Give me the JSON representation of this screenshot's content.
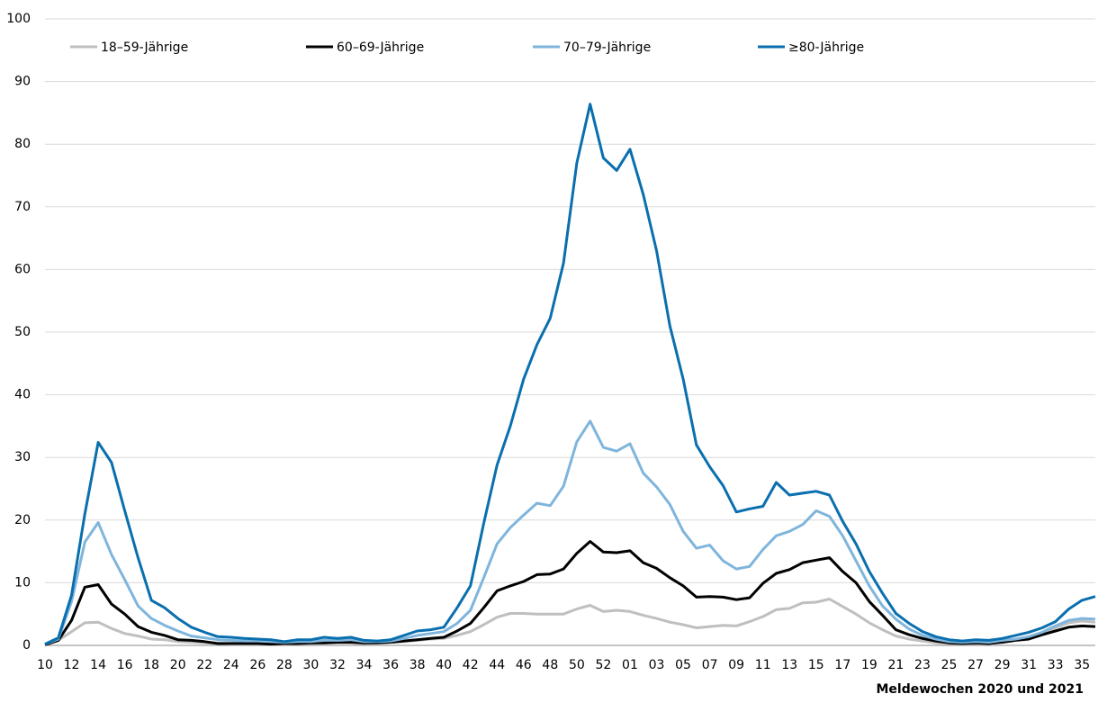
{
  "chart_data": {
    "type": "line",
    "x_label": "Meldewochen 2020 und 2021",
    "categories": [
      "10",
      null,
      "12",
      null,
      "14",
      null,
      "16",
      null,
      "18",
      null,
      "20",
      null,
      "22",
      null,
      "24",
      null,
      "26",
      null,
      "28",
      null,
      "30",
      null,
      "32",
      null,
      "34",
      null,
      "36",
      null,
      "38",
      null,
      "40",
      null,
      "42",
      null,
      "44",
      null,
      "46",
      null,
      "48",
      null,
      "50",
      null,
      "52",
      null,
      "01",
      null,
      "03",
      null,
      "05",
      null,
      "07",
      null,
      "09",
      null,
      "11",
      null,
      "13",
      null,
      "15",
      null,
      "17",
      null,
      "19",
      null,
      "21",
      null,
      "23",
      null,
      "25",
      null,
      "27",
      null,
      "29",
      null,
      "31",
      null,
      "33",
      null,
      "35",
      null
    ],
    "ylim": [
      0,
      100
    ],
    "yticks": [
      0,
      10,
      20,
      30,
      40,
      50,
      60,
      70,
      80,
      90,
      100
    ],
    "grid": true,
    "series": [
      {
        "name": "18–59-Jährige",
        "color": "#bfbfbf",
        "values": [
          0.1,
          0.8,
          2.2,
          3.6,
          3.7,
          2.7,
          1.9,
          1.5,
          1.0,
          0.9,
          0.6,
          0.5,
          0.4,
          0.3,
          0.2,
          0.2,
          0.2,
          0.2,
          0.2,
          0.3,
          0.3,
          0.4,
          0.4,
          0.4,
          0.3,
          0.4,
          0.5,
          0.6,
          0.8,
          1.0,
          1.1,
          1.6,
          2.2,
          3.3,
          4.5,
          5.1,
          5.1,
          5.0,
          5.0,
          5.0,
          5.8,
          6.4,
          5.4,
          5.6,
          5.4,
          4.8,
          4.3,
          3.7,
          3.3,
          2.8,
          3.0,
          3.2,
          3.1,
          3.8,
          4.6,
          5.7,
          5.9,
          6.8,
          6.9,
          7.4,
          6.2,
          5.0,
          3.6,
          2.5,
          1.5,
          1.0,
          0.7,
          0.4,
          0.3,
          0.2,
          0.3,
          0.3,
          0.6,
          0.9,
          1.4,
          2.0,
          2.8,
          3.6,
          3.9,
          3.7
        ]
      },
      {
        "name": "60–69-Jährige",
        "color": "#000000",
        "values": [
          0.1,
          0.8,
          4,
          9.3,
          9.7,
          6.6,
          5,
          3,
          2.1,
          1.6,
          0.9,
          0.8,
          0.6,
          0.3,
          0.3,
          0.3,
          0.3,
          0.2,
          0.3,
          0.3,
          0.4,
          0.4,
          0.5,
          0.5,
          0.4,
          0.4,
          0.5,
          0.7,
          0.9,
          1.1,
          1.3,
          2.3,
          3.5,
          6,
          8.7,
          9.5,
          10.2,
          11.3,
          11.4,
          12.2,
          14.7,
          16.6,
          14.9,
          14.8,
          15.1,
          13.2,
          12.3,
          10.8,
          9.5,
          7.7,
          7.8,
          7.7,
          7.3,
          7.6,
          9.9,
          11.5,
          12.1,
          13.2,
          13.6,
          14,
          11.8,
          10,
          7,
          4.8,
          2.5,
          1.7,
          1.1,
          0.7,
          0.4,
          0.3,
          0.4,
          0.3,
          0.5,
          0.8,
          1.0,
          1.7,
          2.3,
          2.9,
          3.1,
          3.0
        ]
      },
      {
        "name": "70–79-Jährige",
        "color": "#7fb5dc",
        "values": [
          0.2,
          1.0,
          7,
          16.5,
          19.6,
          14.5,
          10.5,
          6.3,
          4.3,
          3.2,
          2.3,
          1.5,
          1.2,
          0.9,
          0.8,
          0.7,
          0.7,
          0.6,
          0.5,
          0.6,
          0.6,
          0.8,
          0.8,
          0.9,
          0.6,
          0.6,
          0.7,
          1.1,
          1.6,
          1.9,
          2.2,
          3.5,
          5.6,
          10.8,
          16.2,
          18.8,
          20.8,
          22.7,
          22.3,
          25.4,
          32.5,
          35.8,
          31.6,
          31,
          32.2,
          27.5,
          25.3,
          22.5,
          18.2,
          15.5,
          16,
          13.5,
          12.2,
          12.6,
          15.3,
          17.5,
          18.2,
          19.3,
          21.5,
          20.6,
          17.5,
          13.5,
          9.5,
          6.3,
          4.2,
          2.6,
          1.6,
          1.0,
          0.6,
          0.5,
          0.6,
          0.5,
          0.8,
          1.0,
          1.4,
          2.1,
          3.1,
          4.0,
          4.3,
          4.2
        ]
      },
      {
        "name": "≥80-Jährige",
        "color": "#0a6fae",
        "values": [
          0.2,
          1.2,
          8,
          21,
          32.4,
          29.2,
          21.5,
          14,
          7.2,
          6,
          4.3,
          2.9,
          2.1,
          1.4,
          1.3,
          1.1,
          1.0,
          0.9,
          0.6,
          0.9,
          0.9,
          1.3,
          1.1,
          1.3,
          0.8,
          0.7,
          0.9,
          1.6,
          2.3,
          2.5,
          2.9,
          6,
          9.5,
          19.5,
          28.8,
          35,
          42.5,
          48,
          52.2,
          61,
          77,
          86.4,
          77.8,
          75.8,
          79.2,
          72,
          63,
          51,
          42.5,
          32,
          28.5,
          25.5,
          21.3,
          21.8,
          22.2,
          26,
          24,
          24.3,
          24.6,
          24,
          19.8,
          16.2,
          11.8,
          8.3,
          5.1,
          3.5,
          2.2,
          1.4,
          0.9,
          0.7,
          0.9,
          0.8,
          1.1,
          1.6,
          2.1,
          2.8,
          3.8,
          5.8,
          7.2,
          7.8
        ]
      }
    ]
  }
}
